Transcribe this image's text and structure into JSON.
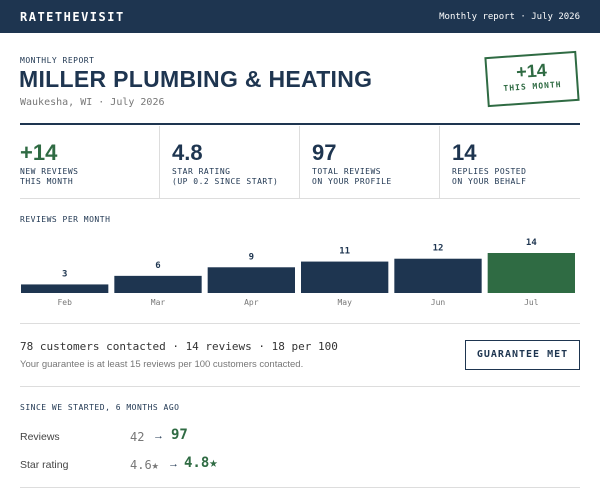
{
  "header": {
    "brand": "RATETHEVISIT",
    "report_label": "Monthly report · July 2026"
  },
  "report": {
    "kicker": "MONTHLY REPORT",
    "title": "MILLER PLUMBING & HEATING",
    "location": "Waukesha, WI · July 2026",
    "stamp": {
      "value": "+14",
      "label": "THIS MONTH"
    }
  },
  "stats": [
    {
      "value": "+14",
      "line1": "NEW REVIEWS",
      "line2": "THIS MONTH"
    },
    {
      "value": "4.8",
      "line1": "STAR RATING",
      "line2": "(UP 0.2 SINCE START)"
    },
    {
      "value": "97",
      "line1": "TOTAL REVIEWS",
      "line2": "ON YOUR PROFILE"
    },
    {
      "value": "14",
      "line1": "REPLIES POSTED",
      "line2": "ON YOUR BEHALF"
    }
  ],
  "chart_data": {
    "type": "bar",
    "title": "REVIEWS PER MONTH",
    "categories": [
      "Feb",
      "Mar",
      "Apr",
      "May",
      "Jun",
      "Jul"
    ],
    "values": [
      3,
      6,
      9,
      11,
      12,
      14
    ],
    "colors": [
      "#1e3550",
      "#1e3550",
      "#1e3550",
      "#1e3550",
      "#1e3550",
      "#2f6b43"
    ]
  },
  "guarantee": {
    "summary": "78 customers contacted · 14 reviews · 18 per 100",
    "note": "Your guarantee is at least 15 reviews per 100 customers contacted.",
    "badge": "GUARANTEE MET"
  },
  "since": {
    "title": "SINCE WE STARTED, 6 MONTHS AGO",
    "arrow": "→",
    "rows": [
      {
        "label": "Reviews",
        "from": "42",
        "to": "97"
      },
      {
        "label": "Star rating",
        "from": "4.6★",
        "to": "4.8★"
      }
    ]
  }
}
